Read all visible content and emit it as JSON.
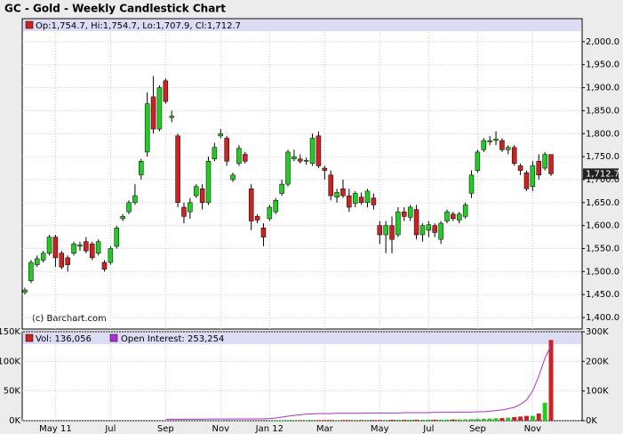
{
  "chart_data": {
    "type": "candlestick",
    "title": "GC - Gold - Weekly Candlestick Chart",
    "ohlc_label": "Op:1,754.7, Hi:1,754.7, Lo:1,707.9, Cl:1,712.7",
    "source": "(c) Barchart.com",
    "last_price": {
      "value": 1712.7,
      "label": "1,712.7"
    },
    "up_color": "#22cc22",
    "down_color": "#cc2222",
    "categories": [
      null,
      null,
      null,
      null,
      null,
      "May 11",
      null,
      null,
      null,
      null,
      null,
      null,
      null,
      null,
      "Jul",
      null,
      null,
      null,
      null,
      null,
      null,
      null,
      null,
      "Sep",
      null,
      null,
      null,
      null,
      null,
      null,
      null,
      null,
      "Nov",
      null,
      null,
      null,
      null,
      null,
      null,
      null,
      "Jan 12",
      null,
      null,
      null,
      null,
      null,
      null,
      null,
      null,
      "Mar",
      null,
      null,
      null,
      null,
      null,
      null,
      null,
      null,
      "May",
      null,
      null,
      null,
      null,
      null,
      null,
      null,
      "Jul",
      null,
      null,
      null,
      null,
      null,
      null,
      null,
      "Sep",
      null,
      null,
      null,
      null,
      null,
      null,
      null,
      null,
      "Nov",
      null,
      null,
      null
    ],
    "open": [
      1455,
      1480,
      1515,
      1525,
      1540,
      1575,
      1540,
      1530,
      1540,
      1555,
      1565,
      1560,
      1540,
      1520,
      1520,
      1555,
      1615,
      1630,
      1650,
      1710,
      1760,
      1880,
      1810,
      1915,
      1835,
      1795,
      1640,
      1630,
      1665,
      1680,
      1650,
      1745,
      1795,
      1790,
      1700,
      1735,
      1755,
      1680,
      1620,
      1595,
      1615,
      1630,
      1670,
      1690,
      1745,
      1745,
      1740,
      1735,
      1795,
      1725,
      1710,
      1662,
      1680,
      1665,
      1648,
      1662,
      1650,
      1660,
      1600,
      1580,
      1600,
      1580,
      1630,
      1618,
      1635,
      1580,
      1590,
      1600,
      1570,
      1610,
      1625,
      1612,
      1620,
      1670,
      1720,
      1765,
      1782,
      1785,
      1785,
      1765,
      1770,
      1730,
      1715,
      1685,
      1740,
      1725,
      1754.7
    ],
    "high": [
      1465,
      1525,
      1535,
      1545,
      1580,
      1580,
      1545,
      1535,
      1565,
      1565,
      1575,
      1565,
      1570,
      1525,
      1555,
      1600,
      1625,
      1655,
      1690,
      1745,
      1890,
      1925,
      1905,
      1920,
      1850,
      1800,
      1650,
      1660,
      1690,
      1690,
      1750,
      1780,
      1810,
      1795,
      1715,
      1775,
      1760,
      1690,
      1625,
      1605,
      1645,
      1660,
      1700,
      1765,
      1765,
      1755,
      1748,
      1800,
      1805,
      1730,
      1720,
      1680,
      1700,
      1680,
      1675,
      1672,
      1680,
      1670,
      1610,
      1610,
      1620,
      1640,
      1640,
      1645,
      1645,
      1605,
      1610,
      1605,
      1610,
      1635,
      1630,
      1630,
      1650,
      1720,
      1765,
      1790,
      1795,
      1805,
      1790,
      1775,
      1775,
      1735,
      1720,
      1740,
      1755,
      1760,
      1754.7
    ],
    "low": [
      1450,
      1475,
      1510,
      1520,
      1535,
      1510,
      1505,
      1500,
      1535,
      1545,
      1540,
      1525,
      1535,
      1500,
      1515,
      1550,
      1610,
      1625,
      1645,
      1700,
      1750,
      1800,
      1805,
      1865,
      1825,
      1640,
      1605,
      1615,
      1660,
      1635,
      1645,
      1740,
      1790,
      1730,
      1695,
      1730,
      1735,
      1590,
      1605,
      1555,
      1610,
      1625,
      1665,
      1685,
      1740,
      1735,
      1732,
      1730,
      1725,
      1700,
      1655,
      1650,
      1660,
      1630,
      1640,
      1645,
      1640,
      1635,
      1560,
      1540,
      1540,
      1575,
      1610,
      1610,
      1570,
      1565,
      1575,
      1575,
      1560,
      1605,
      1610,
      1605,
      1615,
      1660,
      1715,
      1760,
      1775,
      1775,
      1760,
      1755,
      1730,
      1710,
      1675,
      1675,
      1700,
      1720,
      1707.9
    ],
    "close": [
      1460,
      1520,
      1528,
      1540,
      1575,
      1530,
      1510,
      1515,
      1560,
      1558,
      1545,
      1530,
      1565,
      1505,
      1550,
      1595,
      1620,
      1650,
      1665,
      1740,
      1865,
      1810,
      1900,
      1870,
      1838,
      1650,
      1620,
      1650,
      1685,
      1650,
      1740,
      1770,
      1800,
      1740,
      1710,
      1768,
      1740,
      1610,
      1612,
      1575,
      1640,
      1655,
      1690,
      1760,
      1750,
      1740,
      1742,
      1790,
      1730,
      1720,
      1665,
      1672,
      1665,
      1640,
      1670,
      1650,
      1675,
      1645,
      1580,
      1600,
      1570,
      1630,
      1620,
      1640,
      1580,
      1600,
      1602,
      1585,
      1605,
      1630,
      1615,
      1625,
      1645,
      1710,
      1760,
      1785,
      1785,
      1788,
      1765,
      1770,
      1735,
      1720,
      1680,
      1730,
      1710,
      1755,
      1712.7
    ],
    "ylim": [
      1375,
      2050
    ],
    "yticks": [
      {
        "value": 1400,
        "label": "1,400.0"
      },
      {
        "value": 1450,
        "label": "1,450.0"
      },
      {
        "value": 1500,
        "label": "1,500.0"
      },
      {
        "value": 1550,
        "label": "1,550.0"
      },
      {
        "value": 1600,
        "label": "1,600.0"
      },
      {
        "value": 1650,
        "label": "1,650.0"
      },
      {
        "value": 1700,
        "label": "1,700.0"
      },
      {
        "value": 1750,
        "label": "1,750.0"
      },
      {
        "value": 1800,
        "label": "1,800.0"
      },
      {
        "value": 1850,
        "label": "1,850.0"
      },
      {
        "value": 1900,
        "label": "1,900.0"
      },
      {
        "value": 1950,
        "label": "1,950.0"
      },
      {
        "value": 2000,
        "label": "2,000.0"
      }
    ],
    "volume_legend": "Vol: 136,056",
    "oi_legend": "Open Interest: 253,254",
    "oi_color": "#aa33cc",
    "volume": [
      200,
      200,
      200,
      200,
      200,
      200,
      200,
      200,
      200,
      200,
      200,
      200,
      200,
      200,
      200,
      200,
      200,
      200,
      200,
      200,
      200,
      200,
      200,
      200,
      200,
      200,
      200,
      200,
      200,
      200,
      200,
      200,
      200,
      200,
      200,
      200,
      200,
      200,
      200,
      200,
      800,
      800,
      800,
      900,
      900,
      900,
      900,
      1000,
      1000,
      1000,
      1000,
      1000,
      1000,
      1000,
      1100,
      1100,
      1100,
      1100,
      1200,
      1200,
      1500,
      1500,
      1500,
      1600,
      1600,
      1600,
      1700,
      1700,
      1800,
      1800,
      2000,
      2000,
      2200,
      2500,
      2800,
      3000,
      3500,
      4000,
      4500,
      5000,
      6000,
      7000,
      8000,
      8000,
      12000,
      30000,
      136056
    ],
    "oi": [
      null,
      null,
      null,
      null,
      null,
      null,
      null,
      null,
      null,
      null,
      null,
      null,
      null,
      null,
      null,
      null,
      null,
      null,
      null,
      null,
      null,
      null,
      null,
      5000,
      5000,
      5000,
      5000,
      5000,
      5000,
      5000,
      5500,
      5500,
      5500,
      5500,
      5500,
      6000,
      6000,
      6000,
      6000,
      6000,
      7000,
      9000,
      12000,
      15000,
      18000,
      20000,
      22000,
      23000,
      24000,
      24000,
      24000,
      25000,
      25000,
      25000,
      25000,
      25000,
      26000,
      26000,
      26000,
      26000,
      26000,
      26000,
      27000,
      27000,
      27000,
      27000,
      27000,
      28000,
      28000,
      28000,
      28000,
      29000,
      29000,
      29000,
      30000,
      30000,
      32000,
      34000,
      36000,
      40000,
      45000,
      55000,
      70000,
      100000,
      150000,
      210000,
      253254
    ],
    "vlim": [
      0,
      150000
    ],
    "vticks": [
      {
        "value": 0,
        "label": "0K"
      },
      {
        "value": 50000,
        "label": "50K"
      },
      {
        "value": 100000,
        "label": "100K"
      },
      {
        "value": 150000,
        "label": "150K"
      }
    ],
    "y2lim": [
      0,
      300000
    ],
    "y2ticks": [
      {
        "value": 0,
        "label": "0K"
      },
      {
        "value": 100000,
        "label": "100K"
      },
      {
        "value": 200000,
        "label": "200K"
      },
      {
        "value": 300000,
        "label": "300K"
      }
    ],
    "grid": true
  }
}
